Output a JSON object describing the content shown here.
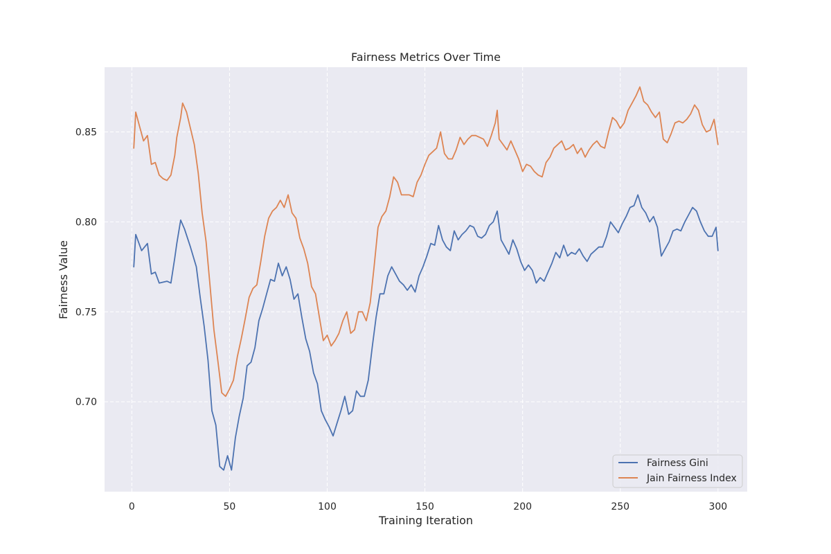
{
  "chart_data": {
    "type": "line",
    "title": "Fairness Metrics Over Time",
    "xlabel": "Training Iteration",
    "ylabel": "Fairness Value",
    "xlim": [
      -13.95,
      314.95
    ],
    "ylim": [
      0.65,
      0.886
    ],
    "xticks": [
      0,
      50,
      100,
      150,
      200,
      250,
      300
    ],
    "yticks": [
      0.7,
      0.75,
      0.8,
      0.85
    ],
    "ytick_labels": [
      "0.70",
      "0.75",
      "0.80",
      "0.85"
    ],
    "grid": true,
    "grid_style": "dashed",
    "legend_position": "lower right",
    "colors": {
      "background": "#eaeaf2",
      "grid": "#ffffff",
      "series_0": "#4c72b0",
      "series_1": "#dd8452"
    },
    "series": [
      {
        "name": "Fairness Gini",
        "points": [
          [
            1,
            0.775
          ],
          [
            2,
            0.793
          ],
          [
            5,
            0.784
          ],
          [
            8,
            0.788
          ],
          [
            10,
            0.771
          ],
          [
            12,
            0.772
          ],
          [
            14,
            0.766
          ],
          [
            18,
            0.767
          ],
          [
            20,
            0.766
          ],
          [
            22,
            0.78
          ],
          [
            23,
            0.788
          ],
          [
            25,
            0.801
          ],
          [
            27,
            0.796
          ],
          [
            30,
            0.786
          ],
          [
            33,
            0.775
          ],
          [
            35,
            0.758
          ],
          [
            37,
            0.742
          ],
          [
            39,
            0.723
          ],
          [
            41,
            0.695
          ],
          [
            43,
            0.687
          ],
          [
            45,
            0.664
          ],
          [
            47,
            0.662
          ],
          [
            49,
            0.67
          ],
          [
            51,
            0.662
          ],
          [
            53,
            0.68
          ],
          [
            55,
            0.692
          ],
          [
            57,
            0.702
          ],
          [
            59,
            0.72
          ],
          [
            61,
            0.722
          ],
          [
            63,
            0.73
          ],
          [
            65,
            0.745
          ],
          [
            67,
            0.752
          ],
          [
            69,
            0.76
          ],
          [
            71,
            0.768
          ],
          [
            73,
            0.767
          ],
          [
            75,
            0.777
          ],
          [
            77,
            0.77
          ],
          [
            79,
            0.775
          ],
          [
            81,
            0.768
          ],
          [
            83,
            0.757
          ],
          [
            85,
            0.76
          ],
          [
            87,
            0.747
          ],
          [
            89,
            0.735
          ],
          [
            91,
            0.728
          ],
          [
            93,
            0.716
          ],
          [
            95,
            0.71
          ],
          [
            97,
            0.695
          ],
          [
            99,
            0.69
          ],
          [
            101,
            0.686
          ],
          [
            103,
            0.681
          ],
          [
            105,
            0.688
          ],
          [
            107,
            0.695
          ],
          [
            109,
            0.703
          ],
          [
            111,
            0.693
          ],
          [
            113,
            0.695
          ],
          [
            115,
            0.706
          ],
          [
            117,
            0.703
          ],
          [
            119,
            0.703
          ],
          [
            121,
            0.712
          ],
          [
            123,
            0.73
          ],
          [
            125,
            0.747
          ],
          [
            127,
            0.76
          ],
          [
            129,
            0.76
          ],
          [
            131,
            0.77
          ],
          [
            133,
            0.775
          ],
          [
            135,
            0.771
          ],
          [
            137,
            0.767
          ],
          [
            139,
            0.765
          ],
          [
            141,
            0.762
          ],
          [
            143,
            0.765
          ],
          [
            145,
            0.761
          ],
          [
            147,
            0.77
          ],
          [
            149,
            0.775
          ],
          [
            151,
            0.781
          ],
          [
            153,
            0.788
          ],
          [
            155,
            0.787
          ],
          [
            157,
            0.798
          ],
          [
            159,
            0.79
          ],
          [
            161,
            0.786
          ],
          [
            163,
            0.784
          ],
          [
            165,
            0.795
          ],
          [
            167,
            0.79
          ],
          [
            169,
            0.793
          ],
          [
            171,
            0.795
          ],
          [
            173,
            0.798
          ],
          [
            175,
            0.797
          ],
          [
            177,
            0.792
          ],
          [
            179,
            0.791
          ],
          [
            181,
            0.793
          ],
          [
            183,
            0.798
          ],
          [
            185,
            0.8
          ],
          [
            187,
            0.806
          ],
          [
            189,
            0.79
          ],
          [
            191,
            0.786
          ],
          [
            193,
            0.782
          ],
          [
            195,
            0.79
          ],
          [
            197,
            0.785
          ],
          [
            199,
            0.778
          ],
          [
            201,
            0.773
          ],
          [
            203,
            0.776
          ],
          [
            205,
            0.773
          ],
          [
            207,
            0.766
          ],
          [
            209,
            0.769
          ],
          [
            211,
            0.767
          ],
          [
            213,
            0.772
          ],
          [
            215,
            0.777
          ],
          [
            217,
            0.783
          ],
          [
            219,
            0.78
          ],
          [
            221,
            0.787
          ],
          [
            223,
            0.781
          ],
          [
            225,
            0.783
          ],
          [
            227,
            0.782
          ],
          [
            229,
            0.785
          ],
          [
            231,
            0.781
          ],
          [
            233,
            0.778
          ],
          [
            235,
            0.782
          ],
          [
            237,
            0.784
          ],
          [
            239,
            0.786
          ],
          [
            241,
            0.786
          ],
          [
            243,
            0.792
          ],
          [
            245,
            0.8
          ],
          [
            247,
            0.797
          ],
          [
            249,
            0.794
          ],
          [
            251,
            0.799
          ],
          [
            253,
            0.803
          ],
          [
            255,
            0.808
          ],
          [
            257,
            0.809
          ],
          [
            259,
            0.815
          ],
          [
            261,
            0.808
          ],
          [
            263,
            0.805
          ],
          [
            265,
            0.8
          ],
          [
            267,
            0.803
          ],
          [
            269,
            0.797
          ],
          [
            271,
            0.781
          ],
          [
            273,
            0.785
          ],
          [
            275,
            0.789
          ],
          [
            277,
            0.795
          ],
          [
            279,
            0.796
          ],
          [
            281,
            0.795
          ],
          [
            283,
            0.8
          ],
          [
            285,
            0.804
          ],
          [
            287,
            0.808
          ],
          [
            289,
            0.806
          ],
          [
            291,
            0.8
          ],
          [
            293,
            0.795
          ],
          [
            295,
            0.792
          ],
          [
            297,
            0.792
          ],
          [
            299,
            0.797
          ],
          [
            300,
            0.784
          ]
        ]
      },
      {
        "name": "Jain Fairness Index",
        "points": [
          [
            1,
            0.841
          ],
          [
            2,
            0.861
          ],
          [
            4,
            0.853
          ],
          [
            6,
            0.845
          ],
          [
            8,
            0.848
          ],
          [
            10,
            0.832
          ],
          [
            12,
            0.833
          ],
          [
            14,
            0.826
          ],
          [
            16,
            0.824
          ],
          [
            18,
            0.823
          ],
          [
            20,
            0.826
          ],
          [
            22,
            0.837
          ],
          [
            23,
            0.847
          ],
          [
            25,
            0.858
          ],
          [
            26,
            0.866
          ],
          [
            28,
            0.861
          ],
          [
            30,
            0.852
          ],
          [
            32,
            0.843
          ],
          [
            34,
            0.827
          ],
          [
            36,
            0.805
          ],
          [
            38,
            0.789
          ],
          [
            40,
            0.765
          ],
          [
            42,
            0.74
          ],
          [
            44,
            0.723
          ],
          [
            46,
            0.705
          ],
          [
            48,
            0.703
          ],
          [
            50,
            0.707
          ],
          [
            52,
            0.712
          ],
          [
            54,
            0.725
          ],
          [
            56,
            0.735
          ],
          [
            58,
            0.746
          ],
          [
            60,
            0.758
          ],
          [
            62,
            0.763
          ],
          [
            64,
            0.765
          ],
          [
            66,
            0.778
          ],
          [
            68,
            0.792
          ],
          [
            70,
            0.802
          ],
          [
            72,
            0.806
          ],
          [
            74,
            0.808
          ],
          [
            76,
            0.812
          ],
          [
            78,
            0.808
          ],
          [
            80,
            0.815
          ],
          [
            82,
            0.805
          ],
          [
            84,
            0.802
          ],
          [
            86,
            0.791
          ],
          [
            88,
            0.785
          ],
          [
            90,
            0.777
          ],
          [
            92,
            0.764
          ],
          [
            94,
            0.76
          ],
          [
            96,
            0.747
          ],
          [
            98,
            0.734
          ],
          [
            100,
            0.737
          ],
          [
            102,
            0.731
          ],
          [
            104,
            0.734
          ],
          [
            106,
            0.738
          ],
          [
            108,
            0.745
          ],
          [
            110,
            0.75
          ],
          [
            112,
            0.738
          ],
          [
            114,
            0.74
          ],
          [
            116,
            0.75
          ],
          [
            118,
            0.75
          ],
          [
            120,
            0.745
          ],
          [
            122,
            0.755
          ],
          [
            124,
            0.775
          ],
          [
            126,
            0.797
          ],
          [
            128,
            0.803
          ],
          [
            130,
            0.806
          ],
          [
            132,
            0.814
          ],
          [
            134,
            0.825
          ],
          [
            136,
            0.822
          ],
          [
            138,
            0.815
          ],
          [
            140,
            0.815
          ],
          [
            142,
            0.815
          ],
          [
            144,
            0.814
          ],
          [
            146,
            0.822
          ],
          [
            148,
            0.826
          ],
          [
            150,
            0.832
          ],
          [
            152,
            0.837
          ],
          [
            154,
            0.839
          ],
          [
            156,
            0.841
          ],
          [
            158,
            0.85
          ],
          [
            160,
            0.838
          ],
          [
            162,
            0.835
          ],
          [
            164,
            0.835
          ],
          [
            166,
            0.84
          ],
          [
            168,
            0.847
          ],
          [
            170,
            0.843
          ],
          [
            172,
            0.846
          ],
          [
            174,
            0.848
          ],
          [
            176,
            0.848
          ],
          [
            178,
            0.847
          ],
          [
            180,
            0.846
          ],
          [
            182,
            0.842
          ],
          [
            184,
            0.848
          ],
          [
            186,
            0.855
          ],
          [
            187,
            0.862
          ],
          [
            188,
            0.846
          ],
          [
            190,
            0.843
          ],
          [
            192,
            0.84
          ],
          [
            194,
            0.845
          ],
          [
            196,
            0.84
          ],
          [
            198,
            0.835
          ],
          [
            200,
            0.828
          ],
          [
            202,
            0.832
          ],
          [
            204,
            0.831
          ],
          [
            206,
            0.828
          ],
          [
            208,
            0.826
          ],
          [
            210,
            0.825
          ],
          [
            212,
            0.833
          ],
          [
            214,
            0.836
          ],
          [
            216,
            0.841
          ],
          [
            218,
            0.843
          ],
          [
            220,
            0.845
          ],
          [
            222,
            0.84
          ],
          [
            224,
            0.841
          ],
          [
            226,
            0.843
          ],
          [
            228,
            0.838
          ],
          [
            230,
            0.841
          ],
          [
            232,
            0.836
          ],
          [
            234,
            0.84
          ],
          [
            236,
            0.843
          ],
          [
            238,
            0.845
          ],
          [
            240,
            0.842
          ],
          [
            242,
            0.841
          ],
          [
            244,
            0.85
          ],
          [
            246,
            0.858
          ],
          [
            248,
            0.856
          ],
          [
            250,
            0.852
          ],
          [
            252,
            0.855
          ],
          [
            254,
            0.862
          ],
          [
            256,
            0.866
          ],
          [
            258,
            0.87
          ],
          [
            260,
            0.875
          ],
          [
            262,
            0.867
          ],
          [
            264,
            0.865
          ],
          [
            266,
            0.861
          ],
          [
            268,
            0.858
          ],
          [
            270,
            0.861
          ],
          [
            272,
            0.846
          ],
          [
            274,
            0.844
          ],
          [
            276,
            0.849
          ],
          [
            278,
            0.855
          ],
          [
            280,
            0.856
          ],
          [
            282,
            0.855
          ],
          [
            284,
            0.857
          ],
          [
            286,
            0.86
          ],
          [
            288,
            0.865
          ],
          [
            290,
            0.862
          ],
          [
            292,
            0.854
          ],
          [
            294,
            0.85
          ],
          [
            296,
            0.851
          ],
          [
            298,
            0.857
          ],
          [
            300,
            0.843
          ]
        ]
      }
    ]
  }
}
